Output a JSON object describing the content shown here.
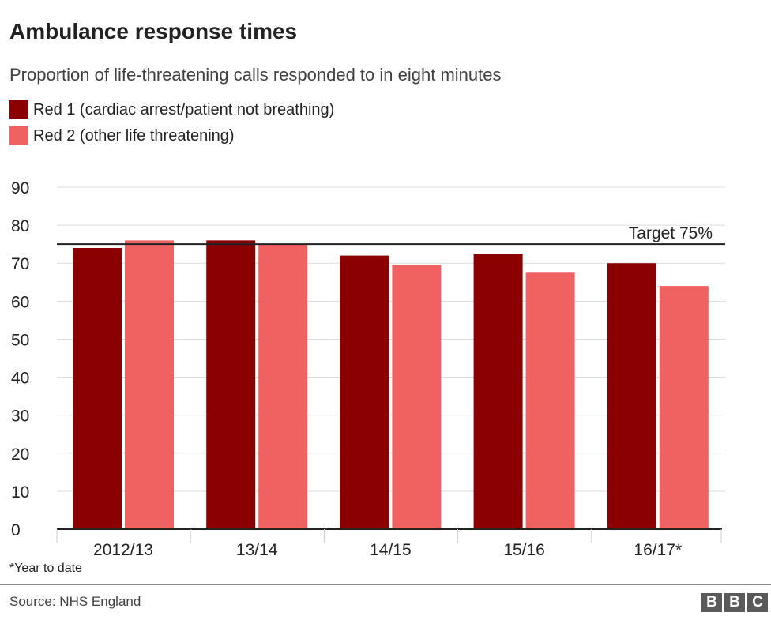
{
  "chart_data": {
    "type": "bar",
    "title": "Ambulance response times",
    "subtitle": "Proportion of life-threatening calls responded to in eight minutes",
    "categories": [
      "2012/13",
      "13/14",
      "14/15",
      "15/16",
      "16/17*"
    ],
    "series": [
      {
        "name": "Red 1 (cardiac arrest/patient not breathing)",
        "color": "#8b0000",
        "values": [
          74,
          76,
          72,
          72.5,
          70
        ]
      },
      {
        "name": "Red 2 (other life threatening)",
        "color": "#f06262",
        "values": [
          76,
          75,
          69.5,
          67.5,
          64
        ]
      }
    ],
    "ylim": [
      0,
      90
    ],
    "yticks": [
      0,
      10,
      20,
      30,
      40,
      50,
      60,
      70,
      80,
      90
    ],
    "target": {
      "value": 75,
      "label": "Target 75%"
    },
    "xlabel": "",
    "ylabel": "",
    "grid": true,
    "legend_position": "top-left"
  },
  "footnote": "*Year to date",
  "source": "Source: NHS England",
  "logo": {
    "letters": [
      "B",
      "B",
      "C"
    ]
  }
}
